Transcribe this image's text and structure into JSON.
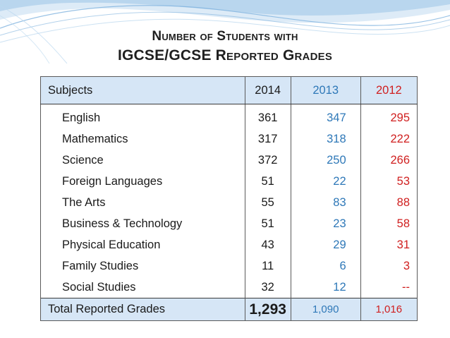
{
  "title": {
    "line1": "Number of Students with",
    "line2": "IGCSE/GCSE Reported Grades"
  },
  "table": {
    "headers": [
      "Subjects",
      "2014",
      "2013",
      "2012"
    ],
    "rows": [
      {
        "subject": "English",
        "y2014": "361",
        "y2013": "347",
        "y2012": "295"
      },
      {
        "subject": "Mathematics",
        "y2014": "317",
        "y2013": "318",
        "y2012": "222"
      },
      {
        "subject": "Science",
        "y2014": "372",
        "y2013": "250",
        "y2012": "266"
      },
      {
        "subject": "Foreign Languages",
        "y2014": "51",
        "y2013": "22",
        "y2012": "53"
      },
      {
        "subject": "The Arts",
        "y2014": "55",
        "y2013": "83",
        "y2012": "88"
      },
      {
        "subject": "Business & Technology",
        "y2014": "51",
        "y2013": "23",
        "y2012": "58"
      },
      {
        "subject": "Physical Education",
        "y2014": "43",
        "y2013": "29",
        "y2012": "31"
      },
      {
        "subject": "Family Studies",
        "y2014": "11",
        "y2013": "6",
        "y2012": "3"
      },
      {
        "subject": "Social Studies",
        "y2014": "32",
        "y2013": "12",
        "y2012": "--"
      }
    ],
    "total": {
      "label": "Total Reported Grades",
      "y2014": "1,293",
      "y2013": "1,090",
      "y2012": "1,016"
    }
  },
  "colors": {
    "header_bg": "#d6e6f6",
    "year_2013": "#2e78b8",
    "year_2012": "#d01f1f",
    "decoration": "#7fb3de"
  }
}
